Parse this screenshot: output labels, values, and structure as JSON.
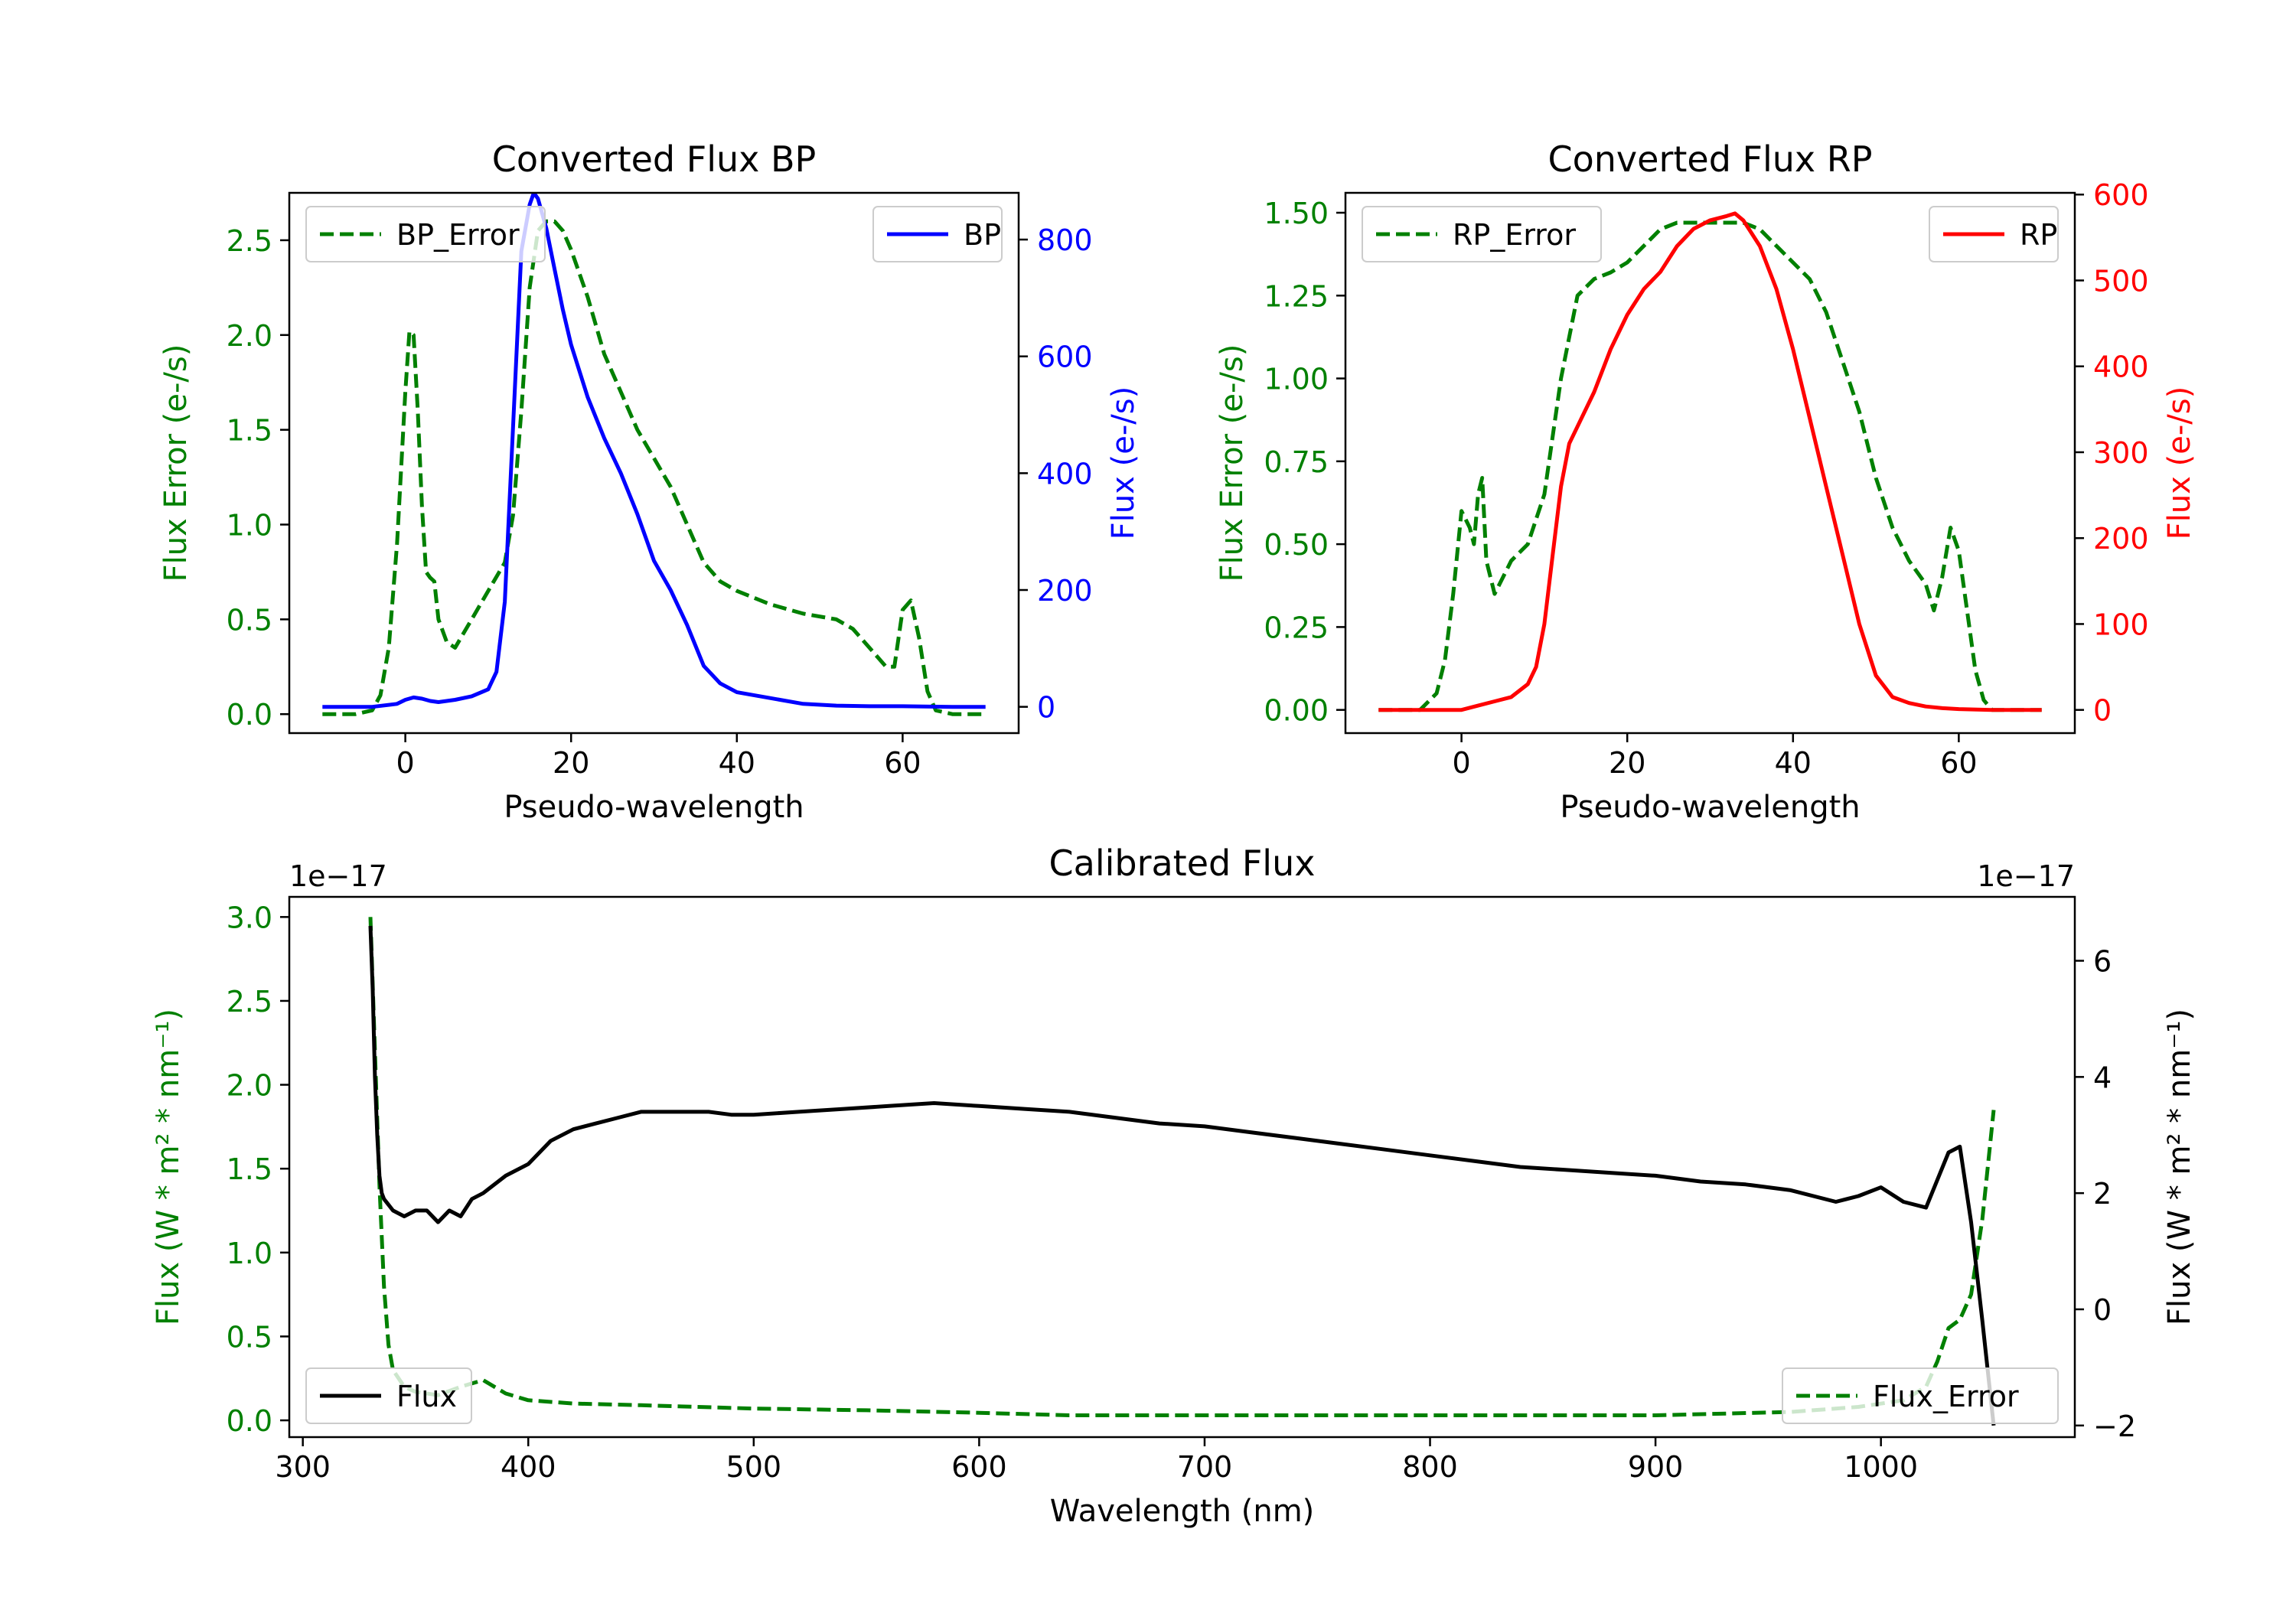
{
  "colors": {
    "green": "#008000",
    "blue": "#0000ff",
    "red": "#ff0000",
    "black": "#000000"
  },
  "chart_data": [
    {
      "id": "bp",
      "type": "line",
      "title": "Converted Flux BP",
      "xlabel": "Pseudo-wavelength",
      "ylabel_left": "Flux Error (e-/s)",
      "ylabel_right": "Flux (e-/s)",
      "xlim": [
        -14,
        74
      ],
      "ylim_left": [
        -0.1,
        2.75
      ],
      "ylim_right": [
        -45,
        880
      ],
      "x_ticks": [
        "0",
        "20",
        "40",
        "60"
      ],
      "x_tick_values": [
        0,
        20,
        40,
        60
      ],
      "left_ticks": [
        "0.0",
        "0.5",
        "1.0",
        "1.5",
        "2.0",
        "2.5"
      ],
      "left_tick_values": [
        0,
        0.5,
        1.0,
        1.5,
        2.0,
        2.5
      ],
      "right_ticks": [
        "0",
        "200",
        "400",
        "600",
        "800"
      ],
      "right_tick_values": [
        0,
        200,
        400,
        600,
        800
      ],
      "series": [
        {
          "name": "BP_Error",
          "axis": "left",
          "color": "#008000",
          "dash": true,
          "x": [
            -10,
            -6,
            -4,
            -3,
            -2,
            -1,
            0,
            0.5,
            1,
            1.5,
            2,
            2.5,
            3,
            3.5,
            4,
            5,
            6,
            8,
            10,
            12,
            13,
            14,
            15,
            16,
            17,
            18,
            19,
            20,
            22,
            24,
            26,
            28,
            30,
            32,
            34,
            36,
            38,
            40,
            44,
            48,
            52,
            54,
            56,
            58,
            59,
            60,
            61,
            62,
            63,
            64,
            66,
            70
          ],
          "y": [
            0,
            0,
            0.02,
            0.1,
            0.35,
            0.9,
            1.7,
            2.02,
            2.0,
            1.6,
            1.1,
            0.75,
            0.72,
            0.7,
            0.5,
            0.38,
            0.35,
            0.5,
            0.65,
            0.8,
            1.05,
            1.6,
            2.25,
            2.55,
            2.6,
            2.6,
            2.55,
            2.45,
            2.2,
            1.9,
            1.7,
            1.5,
            1.35,
            1.2,
            1.0,
            0.8,
            0.7,
            0.65,
            0.58,
            0.53,
            0.5,
            0.45,
            0.35,
            0.25,
            0.25,
            0.55,
            0.6,
            0.4,
            0.12,
            0.02,
            0,
            0
          ]
        },
        {
          "name": "BP",
          "axis": "right",
          "color": "#0000ff",
          "dash": false,
          "x": [
            -10,
            -4,
            -1,
            0,
            1,
            2,
            3,
            4,
            6,
            8,
            10,
            11,
            12,
            13,
            14,
            15,
            15.5,
            16,
            17,
            18,
            19,
            20,
            22,
            24,
            26,
            28,
            30,
            32,
            34,
            36,
            38,
            40,
            44,
            48,
            52,
            56,
            60,
            66,
            70
          ],
          "y": [
            0,
            0,
            5,
            12,
            16,
            14,
            10,
            8,
            12,
            18,
            30,
            60,
            180,
            480,
            780,
            860,
            880,
            870,
            820,
            750,
            680,
            620,
            530,
            460,
            400,
            330,
            250,
            200,
            140,
            70,
            40,
            25,
            15,
            5,
            2,
            1,
            1,
            0,
            0
          ]
        }
      ],
      "legend": [
        {
          "name": "BP_Error",
          "placement": "upper-left"
        },
        {
          "name": "BP",
          "placement": "upper-right"
        }
      ]
    },
    {
      "id": "rp",
      "type": "line",
      "title": "Converted Flux RP",
      "xlabel": "Pseudo-wavelength",
      "ylabel_left": "Flux Error (e-/s)",
      "ylabel_right": "Flux (e-/s)",
      "xlim": [
        -14,
        74
      ],
      "ylim_left": [
        -0.07,
        1.56
      ],
      "ylim_right": [
        -27,
        602
      ],
      "x_ticks": [
        "0",
        "20",
        "40",
        "60"
      ],
      "x_tick_values": [
        0,
        20,
        40,
        60
      ],
      "left_ticks": [
        "0.00",
        "0.25",
        "0.50",
        "0.75",
        "1.00",
        "1.25",
        "1.50"
      ],
      "left_tick_values": [
        0,
        0.25,
        0.5,
        0.75,
        1.0,
        1.25,
        1.5
      ],
      "right_ticks": [
        "0",
        "100",
        "200",
        "300",
        "400",
        "500",
        "600"
      ],
      "right_tick_values": [
        0,
        100,
        200,
        300,
        400,
        500,
        600
      ],
      "series": [
        {
          "name": "RP_Error",
          "axis": "left",
          "color": "#008000",
          "dash": true,
          "x": [
            -10,
            -5,
            -3,
            -2,
            -1,
            0,
            1,
            1.5,
            2,
            2.5,
            3,
            4,
            5,
            6,
            8,
            10,
            12,
            14,
            16,
            18,
            20,
            22,
            24,
            26,
            28,
            30,
            32,
            34,
            36,
            38,
            40,
            42,
            44,
            46,
            48,
            50,
            52,
            54,
            56,
            57,
            58,
            59,
            60,
            61,
            62,
            63,
            64,
            70
          ],
          "y": [
            0,
            0,
            0.05,
            0.15,
            0.35,
            0.6,
            0.55,
            0.5,
            0.65,
            0.7,
            0.45,
            0.35,
            0.4,
            0.45,
            0.5,
            0.65,
            1.0,
            1.25,
            1.3,
            1.32,
            1.35,
            1.4,
            1.45,
            1.47,
            1.47,
            1.47,
            1.47,
            1.47,
            1.45,
            1.4,
            1.35,
            1.3,
            1.2,
            1.05,
            0.9,
            0.7,
            0.55,
            0.45,
            0.38,
            0.3,
            0.4,
            0.55,
            0.48,
            0.3,
            0.12,
            0.03,
            0,
            0
          ]
        },
        {
          "name": "RP",
          "axis": "right",
          "color": "#ff0000",
          "dash": false,
          "x": [
            -10,
            -4,
            0,
            2,
            4,
            6,
            8,
            9,
            10,
            11,
            12,
            13,
            14,
            16,
            18,
            20,
            22,
            24,
            26,
            28,
            30,
            32,
            33,
            34,
            36,
            38,
            40,
            42,
            44,
            46,
            48,
            50,
            52,
            54,
            56,
            58,
            60,
            64,
            70
          ],
          "y": [
            0,
            0,
            0,
            5,
            10,
            15,
            30,
            50,
            100,
            180,
            260,
            310,
            330,
            370,
            420,
            460,
            490,
            510,
            540,
            560,
            570,
            575,
            578,
            570,
            540,
            490,
            420,
            340,
            260,
            180,
            100,
            40,
            15,
            8,
            4,
            2,
            1,
            0,
            0
          ]
        }
      ],
      "legend": [
        {
          "name": "RP_Error",
          "placement": "upper-left"
        },
        {
          "name": "RP",
          "placement": "upper-right"
        }
      ]
    },
    {
      "id": "cal",
      "type": "line",
      "title": "Calibrated Flux",
      "xlabel": "Wavelength (nm)",
      "ylabel_left": "Flux (W * m² * nm⁻¹)",
      "ylabel_right": "Flux (W * m² * nm⁻¹)",
      "offset_left": "1e−17",
      "offset_right": "1e−17",
      "xlim": [
        294,
        1086
      ],
      "ylim_left": [
        -0.1,
        3.12
      ],
      "ylim_right": [
        -2.2,
        7.1
      ],
      "x_ticks": [
        "300",
        "400",
        "500",
        "600",
        "700",
        "800",
        "900",
        "1000"
      ],
      "x_tick_values": [
        300,
        400,
        500,
        600,
        700,
        800,
        900,
        1000
      ],
      "left_ticks": [
        "0.0",
        "0.5",
        "1.0",
        "1.5",
        "2.0",
        "2.5",
        "3.0"
      ],
      "left_tick_values": [
        0,
        0.5,
        1.0,
        1.5,
        2.0,
        2.5,
        3.0
      ],
      "right_ticks": [
        "−2",
        "0",
        "2",
        "4",
        "6"
      ],
      "right_tick_values": [
        -2,
        0,
        2,
        4,
        6
      ],
      "series": [
        {
          "name": "Flux_Error",
          "axis": "left",
          "color": "#008000",
          "dash": true,
          "x": [
            330,
            332,
            334,
            336,
            338,
            340,
            345,
            350,
            360,
            370,
            380,
            390,
            400,
            420,
            450,
            500,
            550,
            600,
            640,
            700,
            800,
            900,
            960,
            990,
            1010,
            1020,
            1025,
            1030,
            1035,
            1040,
            1045,
            1050
          ],
          "y": [
            3.0,
            2.2,
            1.4,
            0.8,
            0.45,
            0.3,
            0.2,
            0.17,
            0.15,
            0.2,
            0.24,
            0.16,
            0.12,
            0.1,
            0.09,
            0.07,
            0.06,
            0.045,
            0.03,
            0.03,
            0.03,
            0.03,
            0.05,
            0.08,
            0.12,
            0.2,
            0.35,
            0.55,
            0.6,
            0.75,
            1.2,
            1.85
          ]
        },
        {
          "name": "Flux",
          "axis": "right",
          "color": "#000000",
          "dash": false,
          "x": [
            330,
            331,
            332,
            333,
            334,
            335,
            336,
            338,
            340,
            345,
            350,
            355,
            360,
            365,
            370,
            375,
            380,
            390,
            400,
            410,
            420,
            430,
            440,
            450,
            460,
            470,
            480,
            490,
            500,
            520,
            540,
            560,
            580,
            600,
            620,
            640,
            660,
            680,
            700,
            720,
            740,
            760,
            780,
            800,
            820,
            840,
            860,
            880,
            900,
            920,
            940,
            960,
            980,
            990,
            1000,
            1010,
            1020,
            1030,
            1035,
            1040,
            1045,
            1050
          ],
          "y": [
            6.6,
            5.5,
            4.0,
            3.0,
            2.3,
            2.0,
            1.9,
            1.8,
            1.7,
            1.6,
            1.7,
            1.7,
            1.5,
            1.7,
            1.6,
            1.9,
            2.0,
            2.3,
            2.5,
            2.9,
            3.1,
            3.2,
            3.3,
            3.4,
            3.4,
            3.4,
            3.4,
            3.35,
            3.35,
            3.4,
            3.45,
            3.5,
            3.55,
            3.5,
            3.45,
            3.4,
            3.3,
            3.2,
            3.15,
            3.05,
            2.95,
            2.85,
            2.75,
            2.65,
            2.55,
            2.45,
            2.4,
            2.35,
            2.3,
            2.2,
            2.15,
            2.05,
            1.85,
            1.95,
            2.1,
            1.85,
            1.75,
            2.7,
            2.8,
            1.5,
            -0.2,
            -2.0
          ]
        }
      ],
      "legend": [
        {
          "name": "Flux",
          "placement": "lower-left"
        },
        {
          "name": "Flux_Error",
          "placement": "lower-right"
        }
      ]
    }
  ]
}
